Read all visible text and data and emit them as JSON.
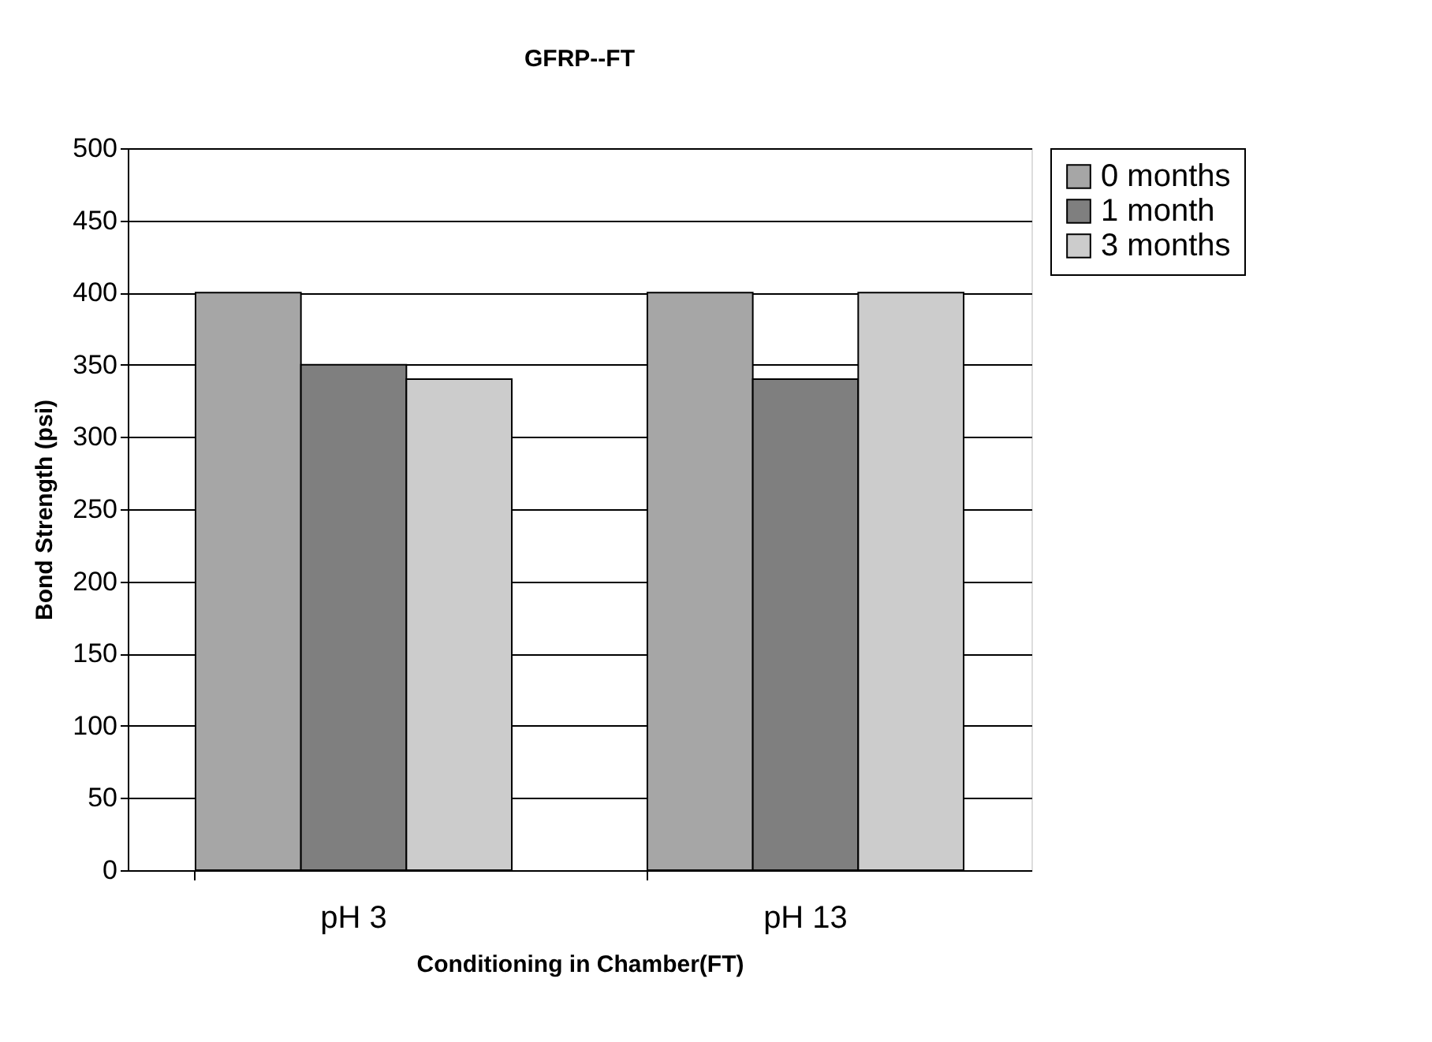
{
  "chart_data": {
    "type": "bar",
    "title": "GFRP--FT",
    "xlabel": "Conditioning in Chamber(FT)",
    "ylabel": "Bond Strength (psi)",
    "categories": [
      "pH 3",
      "pH 13"
    ],
    "series": [
      {
        "name": "0 months",
        "color": "#a6a6a6",
        "values": [
          400,
          400
        ]
      },
      {
        "name": "1 month",
        "color": "#7f7f7f",
        "values": [
          350,
          340
        ]
      },
      {
        "name": "3 months",
        "color": "#cccccc",
        "values": [
          340,
          400
        ]
      }
    ],
    "ylim": [
      0,
      500
    ],
    "yticks": [
      0,
      50,
      100,
      150,
      200,
      250,
      300,
      350,
      400,
      450,
      500
    ],
    "grid": "y",
    "legend": "right"
  }
}
